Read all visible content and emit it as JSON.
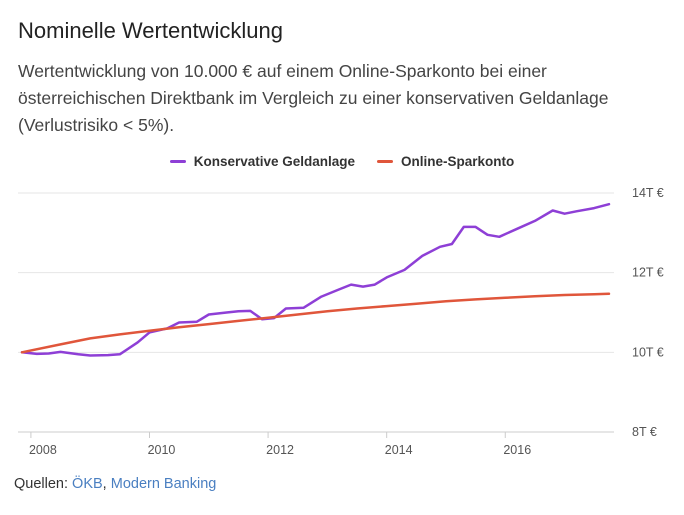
{
  "header": {
    "title": "Nominelle Wertentwicklung",
    "subtitle": "Wertentwicklung von 10.000 € auf einem Online-Sparkonto bei einer österreichischen Direktbank im Vergleich zu einer konservativen Geldanlage (Verlustrisiko < 5%)."
  },
  "footer": {
    "sources_label": "Quellen:",
    "source_links": [
      "ÖKB",
      "Modern Banking"
    ],
    "separator": ", "
  },
  "chart_data": {
    "type": "line",
    "title": "Nominelle Wertentwicklung",
    "xlabel": "",
    "ylabel": "",
    "xlim": [
      2007.85,
      2017.8
    ],
    "ylim": [
      8000,
      14000
    ],
    "x_ticks": [
      2008,
      2010,
      2012,
      2014,
      2016
    ],
    "y_ticks": [
      {
        "value": 8000,
        "label": "8T €"
      },
      {
        "value": 10000,
        "label": "10T €"
      },
      {
        "value": 12000,
        "label": "12T €"
      },
      {
        "value": 14000,
        "label": "14T €"
      }
    ],
    "legend_position": "top-center",
    "grid": true,
    "series": [
      {
        "name": "Konservative Geldanlage",
        "color": "#8e3fd6",
        "points": [
          [
            2007.85,
            10000
          ],
          [
            2008.1,
            9960
          ],
          [
            2008.3,
            9970
          ],
          [
            2008.5,
            10010
          ],
          [
            2008.8,
            9950
          ],
          [
            2009.0,
            9920
          ],
          [
            2009.3,
            9930
          ],
          [
            2009.5,
            9950
          ],
          [
            2009.8,
            10250
          ],
          [
            2010.0,
            10500
          ],
          [
            2010.3,
            10600
          ],
          [
            2010.5,
            10750
          ],
          [
            2010.8,
            10770
          ],
          [
            2011.0,
            10950
          ],
          [
            2011.3,
            11000
          ],
          [
            2011.5,
            11030
          ],
          [
            2011.7,
            11040
          ],
          [
            2011.9,
            10830
          ],
          [
            2012.1,
            10860
          ],
          [
            2012.3,
            11100
          ],
          [
            2012.6,
            11120
          ],
          [
            2012.9,
            11400
          ],
          [
            2013.2,
            11580
          ],
          [
            2013.4,
            11700
          ],
          [
            2013.6,
            11650
          ],
          [
            2013.8,
            11700
          ],
          [
            2014.0,
            11880
          ],
          [
            2014.3,
            12070
          ],
          [
            2014.6,
            12420
          ],
          [
            2014.9,
            12650
          ],
          [
            2015.1,
            12720
          ],
          [
            2015.3,
            13150
          ],
          [
            2015.5,
            13150
          ],
          [
            2015.7,
            12950
          ],
          [
            2015.9,
            12900
          ],
          [
            2016.2,
            13100
          ],
          [
            2016.5,
            13300
          ],
          [
            2016.8,
            13560
          ],
          [
            2017.0,
            13480
          ],
          [
            2017.2,
            13540
          ],
          [
            2017.5,
            13620
          ],
          [
            2017.75,
            13720
          ]
        ]
      },
      {
        "name": "Online-Sparkonto",
        "color": "#e0563b",
        "points": [
          [
            2007.85,
            10000
          ],
          [
            2008.5,
            10200
          ],
          [
            2009.0,
            10350
          ],
          [
            2009.5,
            10450
          ],
          [
            2010.0,
            10540
          ],
          [
            2010.5,
            10630
          ],
          [
            2011.0,
            10710
          ],
          [
            2011.5,
            10790
          ],
          [
            2012.0,
            10870
          ],
          [
            2012.5,
            10950
          ],
          [
            2013.0,
            11030
          ],
          [
            2013.5,
            11100
          ],
          [
            2014.0,
            11160
          ],
          [
            2014.5,
            11220
          ],
          [
            2015.0,
            11280
          ],
          [
            2015.5,
            11330
          ],
          [
            2016.0,
            11370
          ],
          [
            2016.5,
            11410
          ],
          [
            2017.0,
            11440
          ],
          [
            2017.5,
            11460
          ],
          [
            2017.75,
            11470
          ]
        ]
      }
    ]
  }
}
